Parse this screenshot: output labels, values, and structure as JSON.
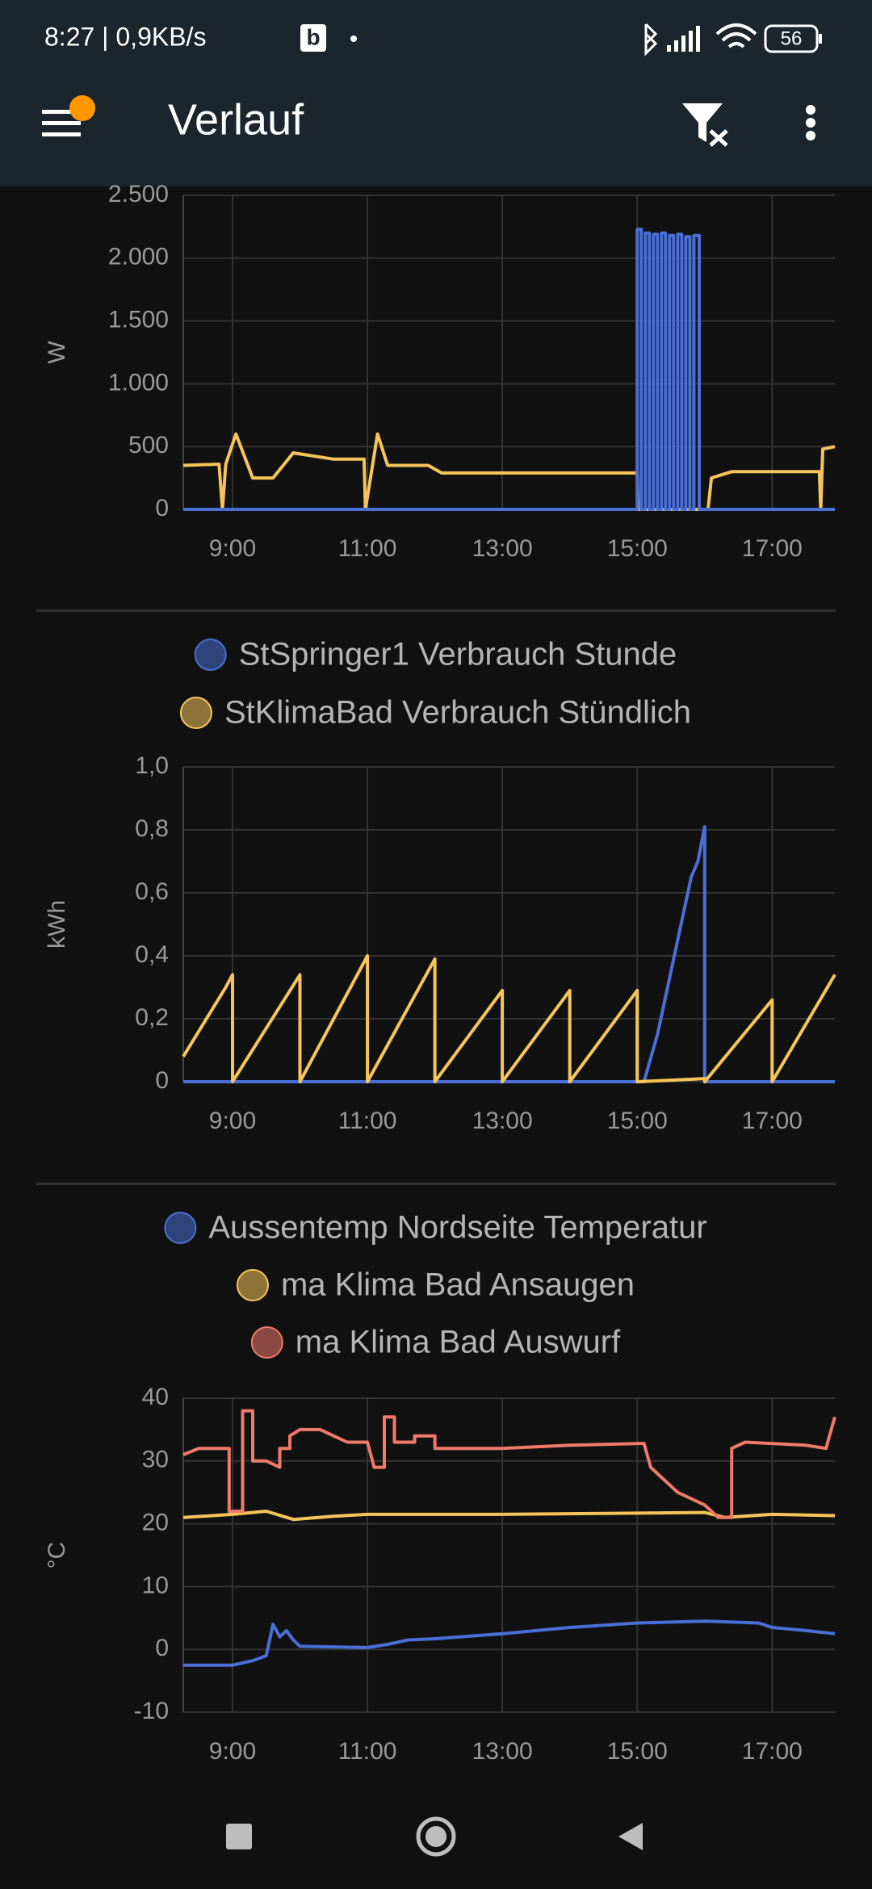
{
  "status_bar": {
    "time": "8:27 | 0,9KB/s",
    "badge": "b",
    "battery": "56"
  },
  "app_bar": {
    "title": "Verlauf"
  },
  "chart_data": [
    {
      "type": "line",
      "ylabel": "W",
      "xlim": [
        8.27,
        17.93
      ],
      "xticks": [
        {
          "value": 9,
          "label": "9:00"
        },
        {
          "value": 11,
          "label": "11:00"
        },
        {
          "value": 13,
          "label": "13:00"
        },
        {
          "value": 15,
          "label": "15:00"
        },
        {
          "value": 17,
          "label": "17:00"
        }
      ],
      "ylim": [
        0,
        2500
      ],
      "yticks": [
        {
          "value": 2500,
          "label": "2.500"
        },
        {
          "value": 2000,
          "label": "2.000"
        },
        {
          "value": 1500,
          "label": "1.500"
        },
        {
          "value": 1000,
          "label": "1.000"
        },
        500,
        0
      ],
      "grid": true,
      "series": [
        {
          "color": "#f5c55a",
          "x": [
            8.27,
            8.8,
            8.85,
            8.9,
            9.05,
            9.3,
            9.6,
            9.9,
            10.5,
            10.95,
            10.97,
            11.15,
            11.3,
            11.9,
            12.1,
            15.0,
            15.01,
            16.05,
            16.1,
            16.4,
            17.7,
            17.72,
            17.75,
            17.93
          ],
          "values": [
            350,
            360,
            0,
            360,
            600,
            250,
            250,
            450,
            400,
            400,
            0,
            600,
            350,
            350,
            290,
            290,
            0,
            0,
            250,
            300,
            300,
            0,
            480,
            500
          ]
        },
        {
          "color": "#4a6fd6",
          "x": [
            8.27,
            15.0,
            15.0,
            15.06,
            15.06,
            15.12,
            15.12,
            15.18,
            15.18,
            15.24,
            15.24,
            15.3,
            15.3,
            15.36,
            15.36,
            15.42,
            15.42,
            15.48,
            15.48,
            15.54,
            15.54,
            15.6,
            15.6,
            15.66,
            15.66,
            15.72,
            15.72,
            15.78,
            15.78,
            15.84,
            15.84,
            15.92,
            15.92,
            17.93
          ],
          "values": [
            0,
            0,
            2230,
            2230,
            0,
            0,
            2200,
            2200,
            0,
            0,
            2190,
            2190,
            0,
            0,
            2200,
            2200,
            0,
            0,
            2180,
            2180,
            0,
            0,
            2190,
            2190,
            0,
            0,
            2170,
            2170,
            0,
            0,
            2180,
            2180,
            0,
            0
          ]
        }
      ]
    },
    {
      "type": "line",
      "ylabel": "kWh",
      "xlim": [
        8.27,
        17.93
      ],
      "xticks": [
        {
          "value": 9,
          "label": "9:00"
        },
        {
          "value": 11,
          "label": "11:00"
        },
        {
          "value": 13,
          "label": "13:00"
        },
        {
          "value": 15,
          "label": "15:00"
        },
        {
          "value": 17,
          "label": "17:00"
        }
      ],
      "ylim": [
        0,
        1
      ],
      "yticks": [
        {
          "value": 1,
          "label": "1,0"
        },
        {
          "value": 0.8,
          "label": "0,8"
        },
        {
          "value": 0.6,
          "label": "0,6"
        },
        {
          "value": 0.4,
          "label": "0,4"
        },
        {
          "value": 0.2,
          "label": "0,2"
        },
        0
      ],
      "grid": true,
      "series": [
        {
          "name": "StSpringer1 Verbrauch Stunde",
          "color": "#4a6fd6",
          "x": [
            8.27,
            15.1,
            15.3,
            15.5,
            15.65,
            15.8,
            15.9,
            16.0,
            16.0,
            17.93
          ],
          "values": [
            0,
            0,
            0.15,
            0.35,
            0.5,
            0.65,
            0.7,
            0.81,
            0,
            0
          ]
        },
        {
          "name": "StKlimaBad Verbrauch Stündlich",
          "color": "#f5c55a",
          "x": [
            8.27,
            8.9,
            9.0,
            9.0,
            10.0,
            10.0,
            11.0,
            11.0,
            12.0,
            12.0,
            13.0,
            13.0,
            14.0,
            14.0,
            15.0,
            15.0,
            16.0,
            16.0,
            17.0,
            17.0,
            17.93
          ],
          "values": [
            0.08,
            0.3,
            0.34,
            0,
            0.34,
            0,
            0.4,
            0,
            0.39,
            0,
            0.29,
            0,
            0.29,
            0,
            0.29,
            0,
            0.01,
            0,
            0.26,
            0,
            0.34
          ]
        }
      ]
    },
    {
      "type": "line",
      "ylabel": "°C",
      "xlim": [
        8.27,
        17.93
      ],
      "xticks": [
        {
          "value": 9,
          "label": "9:00"
        },
        {
          "value": 11,
          "label": "11:00"
        },
        {
          "value": 13,
          "label": "13:00"
        },
        {
          "value": 15,
          "label": "15:00"
        },
        {
          "value": 17,
          "label": "17:00"
        }
      ],
      "ylim": [
        -10,
        40
      ],
      "yticks": [
        40,
        30,
        20,
        10,
        0,
        -10
      ],
      "grid": true,
      "series": [
        {
          "name": "Aussentemp Nordseite Temperatur",
          "color": "#4a6fd6",
          "x": [
            8.27,
            9.0,
            9.3,
            9.5,
            9.6,
            9.7,
            9.8,
            9.9,
            10.0,
            11.0,
            11.3,
            11.6,
            12.0,
            13.0,
            14.0,
            15.0,
            16.0,
            16.8,
            17.0,
            17.5,
            17.93
          ],
          "values": [
            -2.5,
            -2.5,
            -1.8,
            -1,
            4,
            2,
            3,
            1.5,
            0.5,
            0.3,
            0.8,
            1.5,
            1.7,
            2.5,
            3.5,
            4.2,
            4.5,
            4.2,
            3.5,
            3,
            2.5
          ]
        },
        {
          "name": "ma Klima Bad Ansaugen",
          "color": "#f5c55a",
          "x": [
            8.27,
            9.0,
            9.5,
            9.9,
            10.5,
            11.0,
            13.0,
            15.0,
            16.0,
            16.3,
            17.0,
            17.93
          ],
          "values": [
            21,
            21.5,
            22,
            20.7,
            21.2,
            21.5,
            21.5,
            21.7,
            21.8,
            21,
            21.5,
            21.3
          ]
        },
        {
          "name": "ma Klima Bad Auswurf",
          "color": "#f07a6a",
          "x": [
            8.27,
            8.5,
            8.95,
            8.95,
            9.15,
            9.15,
            9.3,
            9.3,
            9.5,
            9.7,
            9.7,
            9.85,
            9.85,
            10.0,
            10.3,
            10.5,
            10.7,
            11.0,
            11.1,
            11.25,
            11.25,
            11.4,
            11.4,
            11.7,
            11.7,
            12.0,
            12.0,
            13.0,
            14.0,
            15.1,
            15.2,
            15.4,
            15.6,
            15.8,
            16.0,
            16.2,
            16.4,
            16.4,
            16.6,
            17.5,
            17.8,
            17.85,
            17.93
          ],
          "values": [
            31,
            32,
            32,
            22,
            22,
            38,
            38,
            30,
            30,
            29,
            32,
            32,
            34,
            35,
            35,
            34,
            33,
            33,
            29,
            29,
            37,
            37,
            33,
            33,
            34,
            34,
            32,
            32,
            32.5,
            32.8,
            29,
            27,
            25,
            24,
            23,
            21,
            21,
            32,
            33,
            32.5,
            32,
            34,
            37
          ]
        }
      ]
    }
  ]
}
